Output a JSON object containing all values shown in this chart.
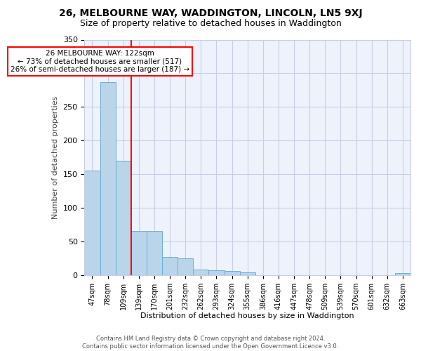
{
  "title": "26, MELBOURNE WAY, WADDINGTON, LINCOLN, LN5 9XJ",
  "subtitle": "Size of property relative to detached houses in Waddington",
  "xlabel": "Distribution of detached houses by size in Waddington",
  "ylabel": "Number of detached properties",
  "categories": [
    "47sqm",
    "78sqm",
    "109sqm",
    "139sqm",
    "170sqm",
    "201sqm",
    "232sqm",
    "262sqm",
    "293sqm",
    "324sqm",
    "355sqm",
    "386sqm",
    "416sqm",
    "447sqm",
    "478sqm",
    "509sqm",
    "539sqm",
    "570sqm",
    "601sqm",
    "632sqm",
    "663sqm"
  ],
  "values": [
    155,
    287,
    170,
    65,
    65,
    27,
    25,
    8,
    7,
    6,
    4,
    0,
    0,
    0,
    0,
    0,
    0,
    0,
    0,
    0,
    3
  ],
  "bar_color": "#bad4ea",
  "bar_edge_color": "#6aaed6",
  "annotation_box_text": "26 MELBOURNE WAY: 122sqm\n← 73% of detached houses are smaller (517)\n26% of semi-detached houses are larger (187) →",
  "red_line_x": 2.5,
  "footer": "Contains HM Land Registry data © Crown copyright and database right 2024.\nContains public sector information licensed under the Open Government Licence v3.0.",
  "bg_color": "#eef2fb",
  "grid_color": "#c5cfe8",
  "ylim": [
    0,
    350
  ],
  "title_fontsize": 10,
  "subtitle_fontsize": 9,
  "ylabel_fontsize": 8,
  "xlabel_fontsize": 8,
  "tick_fontsize": 7,
  "footer_fontsize": 6,
  "ann_fontsize": 7.5
}
